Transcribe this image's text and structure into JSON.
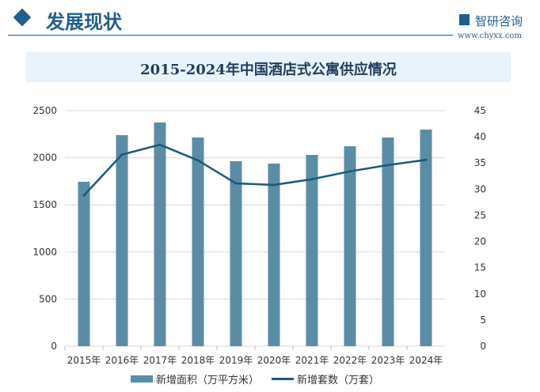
{
  "header": {
    "title": "发展现状",
    "logo_text": "智研咨询",
    "logo_url": "www.chyxx.com"
  },
  "colors": {
    "bar": "#5b8ca6",
    "line": "#1a5a78",
    "brand": "#1f5f8b"
  },
  "chart_data": {
    "type": "bar+line",
    "title": "2015-2024年中国酒店式公寓供应情况",
    "categories": [
      "2015年",
      "2016年",
      "2017年",
      "2018年",
      "2019年",
      "2020年",
      "2021年",
      "2022年",
      "2023年",
      "2024年"
    ],
    "series": [
      {
        "name": "新增面积（万平方米）",
        "type": "bar",
        "axis": "left",
        "values": [
          1745,
          2240,
          2374,
          2215,
          1963,
          1938,
          2030,
          2122,
          2215,
          2299
        ]
      },
      {
        "name": "新增套数（万套）",
        "type": "line",
        "axis": "right",
        "values": [
          28.8,
          36.6,
          38.5,
          35.5,
          31.1,
          30.8,
          31.9,
          33.4,
          34.6,
          35.6
        ]
      }
    ],
    "y_left": {
      "range": [
        0,
        2500
      ],
      "ticks": [
        "0",
        "500",
        "1000",
        "1500",
        "2000",
        "2500"
      ]
    },
    "y_right": {
      "range": [
        0,
        45
      ],
      "ticks": [
        "0",
        "5",
        "10",
        "15",
        "20",
        "25",
        "30",
        "35",
        "40",
        "45"
      ]
    },
    "grid": true,
    "legend": "bottom"
  }
}
